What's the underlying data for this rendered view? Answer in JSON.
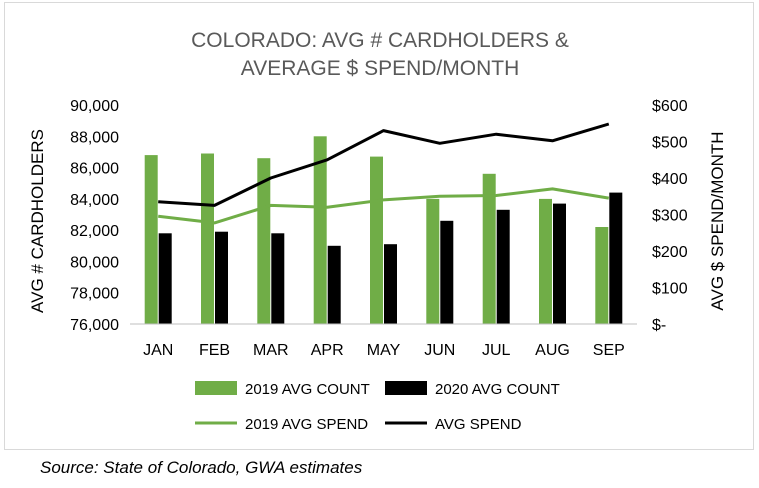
{
  "source_note": "Source: State of Colorado, GWA estimates",
  "colors": {
    "series_2019": "#70ad47",
    "series_2020": "#000000",
    "axis": "#bfbfbf",
    "title": "#595959"
  },
  "chart_data": {
    "type": "bar",
    "title_lines": [
      "COLORADO: AVG  # CARDHOLDERS &",
      "AVERAGE $ SPEND/MONTH"
    ],
    "categories": [
      "JAN",
      "FEB",
      "MAR",
      "APR",
      "MAY",
      "JUN",
      "JUL",
      "AUG",
      "SEP"
    ],
    "ylabel": "AVG # CARDHOLDERS",
    "y2label": "AVG $ SPEND/MONTH",
    "ylim": [
      76000,
      90000
    ],
    "y2lim": [
      0,
      600
    ],
    "yticks": [
      "90,000",
      "88,000",
      "86,000",
      "84,000",
      "82,000",
      "80,000",
      "78,000",
      "76,000"
    ],
    "y2ticks": [
      "$600",
      "$500",
      "$400",
      "$300",
      "$200",
      "$100",
      "$-"
    ],
    "grid": false,
    "legend_position": "bottom",
    "series": [
      {
        "name": "2019 AVG COUNT",
        "kind": "bar",
        "axis": "left",
        "color": "#70ad47",
        "values": [
          86800,
          86900,
          86600,
          88000,
          86700,
          84000,
          85600,
          84000,
          82200
        ]
      },
      {
        "name": "2020 AVG COUNT",
        "kind": "bar",
        "axis": "left",
        "color": "#000000",
        "values": [
          81800,
          81900,
          81800,
          81000,
          81100,
          82600,
          83300,
          83700,
          84400
        ]
      },
      {
        "name": "2019 AVG SPEND",
        "kind": "line",
        "axis": "right",
        "color": "#70ad47",
        "values": [
          295,
          277,
          325,
          320,
          340,
          350,
          352,
          370,
          345
        ]
      },
      {
        "name": "AVG SPEND",
        "kind": "line",
        "axis": "right",
        "color": "#000000",
        "values": [
          335,
          325,
          400,
          450,
          530,
          495,
          520,
          502,
          548
        ]
      }
    ]
  }
}
